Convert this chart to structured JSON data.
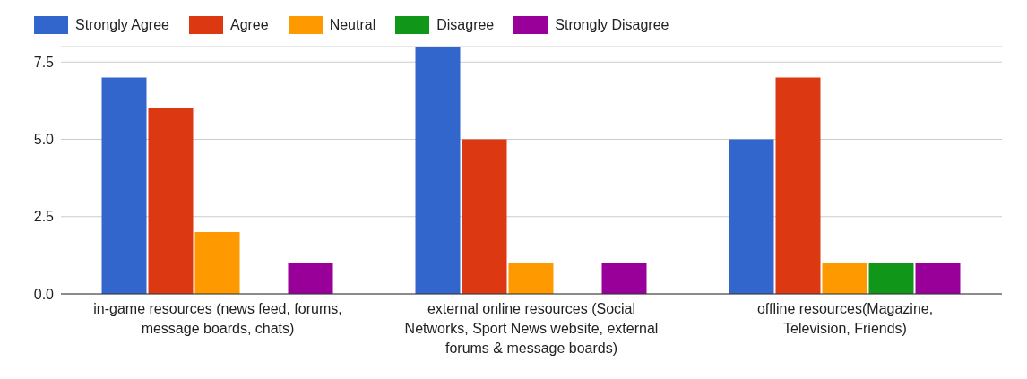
{
  "chart_data": {
    "type": "bar",
    "categories": [
      "in-game resources (news feed, forums, message boards, chats)",
      "external online resources (Social Networks, Sport News website, external forums & message boards)",
      "offline resources(Magazine, Television, Friends)"
    ],
    "series": [
      {
        "name": "Strongly Agree",
        "color": "#3366cc",
        "values": [
          7,
          8,
          5
        ]
      },
      {
        "name": "Agree",
        "color": "#dc3912",
        "values": [
          6,
          5,
          7
        ]
      },
      {
        "name": "Neutral",
        "color": "#ff9900",
        "values": [
          2,
          1,
          1
        ]
      },
      {
        "name": "Disagree",
        "color": "#109618",
        "values": [
          0,
          0,
          1
        ]
      },
      {
        "name": "Strongly Disagree",
        "color": "#990099",
        "values": [
          1,
          1,
          1
        ]
      }
    ],
    "ylim": [
      0,
      8
    ],
    "yticks": [
      {
        "value": 0,
        "label": "0.0"
      },
      {
        "value": 2.5,
        "label": "2.5"
      },
      {
        "value": 5,
        "label": "5.0"
      },
      {
        "value": 7.5,
        "label": "7.5"
      }
    ],
    "grid": "y",
    "legend": "top left"
  }
}
